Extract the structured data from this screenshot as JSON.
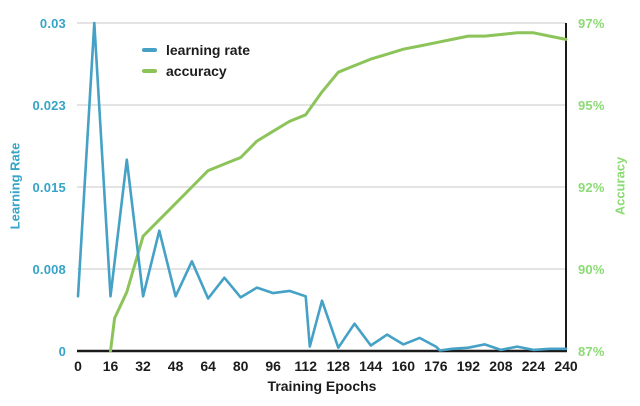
{
  "chart_data": {
    "type": "line",
    "title": "",
    "xlabel": "Training Epochs",
    "ylabel_left": "Learning Rate",
    "ylabel_right": "Accuracy",
    "xlim": [
      0,
      240
    ],
    "ylim_left": [
      0,
      0.03
    ],
    "ylim_right": [
      87,
      97
    ],
    "grid": "horizontal",
    "legend_position": "top-left-inside",
    "x_ticks": [
      "0",
      "16",
      "32",
      "48",
      "64",
      "80",
      "96",
      "112",
      "128",
      "144",
      "160",
      "176",
      "192",
      "208",
      "224",
      "240"
    ],
    "y_ticks_left": [
      "0.03",
      "0.023",
      "0.015",
      "0.008",
      "0"
    ],
    "y_ticks_right": [
      "97%",
      "95%",
      "92%",
      "90%",
      "87%"
    ],
    "series": [
      {
        "name": "learning rate",
        "axis": "left",
        "points": [
          [
            0,
            0.005
          ],
          [
            8,
            0.03
          ],
          [
            16,
            0.005
          ],
          [
            24,
            0.0175
          ],
          [
            32,
            0.005
          ],
          [
            40,
            0.011
          ],
          [
            48,
            0.005
          ],
          [
            56,
            0.0082
          ],
          [
            64,
            0.0048
          ],
          [
            72,
            0.0067
          ],
          [
            80,
            0.0049
          ],
          [
            88,
            0.0058
          ],
          [
            96,
            0.0053
          ],
          [
            104,
            0.0055
          ],
          [
            112,
            0.005
          ],
          [
            114,
            0.0004
          ],
          [
            120,
            0.0046
          ],
          [
            128,
            0.0003
          ],
          [
            136,
            0.0025
          ],
          [
            144,
            0.0005
          ],
          [
            152,
            0.0015
          ],
          [
            160,
            0.0006
          ],
          [
            168,
            0.0012
          ],
          [
            176,
            0.0004
          ],
          [
            178,
            5e-05
          ],
          [
            184,
            0.0002
          ],
          [
            192,
            0.0003
          ],
          [
            200,
            0.0006
          ],
          [
            208,
            0.0001
          ],
          [
            216,
            0.0004
          ],
          [
            224,
            0.0001
          ],
          [
            232,
            0.0002
          ],
          [
            240,
            0.0002
          ]
        ]
      },
      {
        "name": "accuracy",
        "axis": "right",
        "points": [
          [
            16,
            87.0
          ],
          [
            18,
            88.0
          ],
          [
            24,
            88.8
          ],
          [
            32,
            90.5
          ],
          [
            40,
            91.0
          ],
          [
            48,
            91.5
          ],
          [
            56,
            92.0
          ],
          [
            64,
            92.5
          ],
          [
            72,
            92.7
          ],
          [
            80,
            92.9
          ],
          [
            88,
            93.4
          ],
          [
            96,
            93.7
          ],
          [
            104,
            94.0
          ],
          [
            112,
            94.2
          ],
          [
            120,
            94.9
          ],
          [
            128,
            95.5
          ],
          [
            136,
            95.7
          ],
          [
            144,
            95.9
          ],
          [
            152,
            96.05
          ],
          [
            160,
            96.2
          ],
          [
            168,
            96.3
          ],
          [
            176,
            96.4
          ],
          [
            184,
            96.5
          ],
          [
            192,
            96.6
          ],
          [
            200,
            96.6
          ],
          [
            208,
            96.65
          ],
          [
            216,
            96.7
          ],
          [
            224,
            96.7
          ],
          [
            232,
            96.6
          ],
          [
            240,
            96.5
          ]
        ]
      }
    ]
  },
  "colors": {
    "learning_rate_line": "#45a1c5",
    "accuracy_line": "#8cc45a",
    "left_axis_text": "#35a4c8",
    "right_axis_text": "#8bdb74",
    "dark_text": "#1c1c1c",
    "gridline": "#d4d4d4",
    "axis_line": "#1a1a1a"
  }
}
